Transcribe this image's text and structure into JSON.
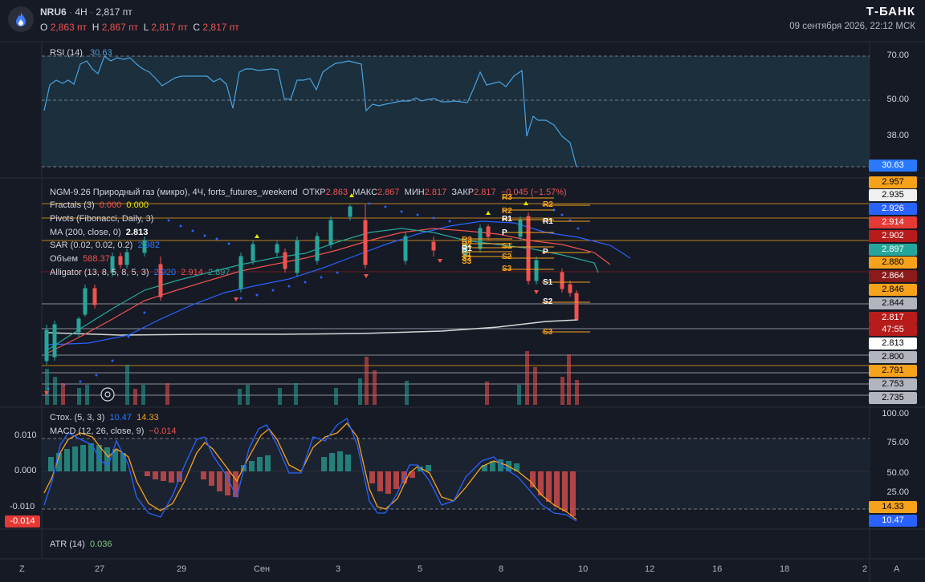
{
  "header": {
    "ticker": "NRU6",
    "timeframe": "4H",
    "last_price": "2,817 пт",
    "ohlc": {
      "o_label": "O",
      "o_value": "2,863 пт",
      "h_label": "H",
      "h_value": "2,867 пт",
      "l_label": "L",
      "l_value": "2,817 пт",
      "c_label": "C",
      "c_value": "2,817 пт"
    },
    "brand": "Т-БАНК",
    "datetime": "09 сентября 2026, 22:12 МСК"
  },
  "rsi_panel": {
    "label": "RSI (14)",
    "value": "30.63",
    "ticks": [
      "70.00",
      "50.00",
      "38.00"
    ],
    "current_box": "30.63"
  },
  "main_panel": {
    "legend": {
      "symbol_line": "NGM-9.26 Природный газ (микро), 4Ч, forts_futures_weekend",
      "otkr_label": "ОТКР",
      "otkr_value": "2.863",
      "maks_label": "МАКС",
      "maks_value": "2.867",
      "min_label": "МИН",
      "min_value": "2.817",
      "zakr_label": "ЗАКР",
      "zakr_value": "2.817",
      "change": "−0.045 (−1.57%)",
      "fractals_label": "Fractals (3)",
      "fractals_v1": "0.000",
      "fractals_v2": "0.000",
      "pivots_label": "Pivots (Fibonacci, Daily, 3)",
      "ma_label": "MA (200, close, 0)",
      "ma_value": "2.813",
      "sar_label": "SAR (0.02, 0.02, 0.2)",
      "sar_value": "2.982",
      "volume_label": "Объем",
      "volume_value": "588.37",
      "alligator_label": "Alligator (13, 8, 5, 8, 5, 3)",
      "alligator_v1": "2.920",
      "alligator_v2": "2.914",
      "alligator_v3": "2.897"
    },
    "price_boxes": [
      {
        "text": "2.957",
        "bg": "#f7a21b",
        "fg": "#000000"
      },
      {
        "text": "2.935",
        "bg": "#f0f0f0",
        "fg": "#000000"
      },
      {
        "text": "2.926",
        "bg": "#2962ff",
        "fg": "#ffffff"
      },
      {
        "text": "2.914",
        "bg": "#e53935",
        "fg": "#ffffff"
      },
      {
        "text": "2.902",
        "bg": "#b71c1c",
        "fg": "#ffffff"
      },
      {
        "text": "2.897",
        "bg": "#26a69a",
        "fg": "#ffffff"
      },
      {
        "text": "2.880",
        "bg": "#f7a21b",
        "fg": "#000000"
      },
      {
        "text": "2.864",
        "bg": "#8b1a1a",
        "fg": "#ffffff"
      },
      {
        "text": "2.846",
        "bg": "#f7a21b",
        "fg": "#000000"
      },
      {
        "text": "2.844",
        "bg": "#b2b5be",
        "fg": "#000000"
      },
      {
        "text": "2.817",
        "bg": "#b71c1c",
        "fg": "#ffffff"
      },
      {
        "text": "47:55",
        "bg": "#b71c1c",
        "fg": "#ffffff"
      },
      {
        "text": "2.813",
        "bg": "#ffffff",
        "fg": "#000000"
      },
      {
        "text": "2.800",
        "bg": "#b2b5be",
        "fg": "#000000"
      },
      {
        "text": "2.791",
        "bg": "#f7a21b",
        "fg": "#000000"
      },
      {
        "text": "2.753",
        "bg": "#b2b5be",
        "fg": "#000000"
      },
      {
        "text": "2.735",
        "bg": "#b2b5be",
        "fg": "#000000"
      }
    ],
    "pivot_labels_left": [
      "R3",
      "R2",
      "R1",
      "P",
      "S1",
      "S2",
      "S3"
    ],
    "pivot_labels_mid": [
      "R3",
      "R2",
      "R1",
      "P",
      "S1",
      "S2",
      "S3"
    ],
    "pivot_labels_right": [
      "R2",
      "R1",
      "P",
      "S1",
      "S2",
      "S3"
    ]
  },
  "osc_panel": {
    "stoch_label": "Стох. (5, 3, 3)",
    "stoch_k": "10.47",
    "stoch_d": "14.33",
    "macd_label": "MACD (12, 26, close, 9)",
    "macd_value": "−0.014",
    "left_ticks": [
      "0.010",
      "0.000",
      "-0.010"
    ],
    "left_box": "-0.014",
    "right_ticks": [
      "100.00",
      "75.00",
      "50.00",
      "25.00"
    ],
    "box_d": "14.33",
    "box_k": "10.47"
  },
  "atr_panel": {
    "label": "ATR (14)",
    "value": "0.036"
  },
  "x_axis": {
    "left_z": "Z",
    "labels": [
      "27",
      "29",
      "Сен",
      "3",
      "5",
      "8",
      "10",
      "12",
      "16",
      "18",
      "2"
    ],
    "right_a": "A"
  },
  "colors": {
    "background": "#161a25",
    "up": "#26a69a",
    "down": "#ef5350",
    "rsi_line": "#4aa3e0",
    "sar_dots": "#2962ff",
    "pivot": "#f7a21b"
  }
}
